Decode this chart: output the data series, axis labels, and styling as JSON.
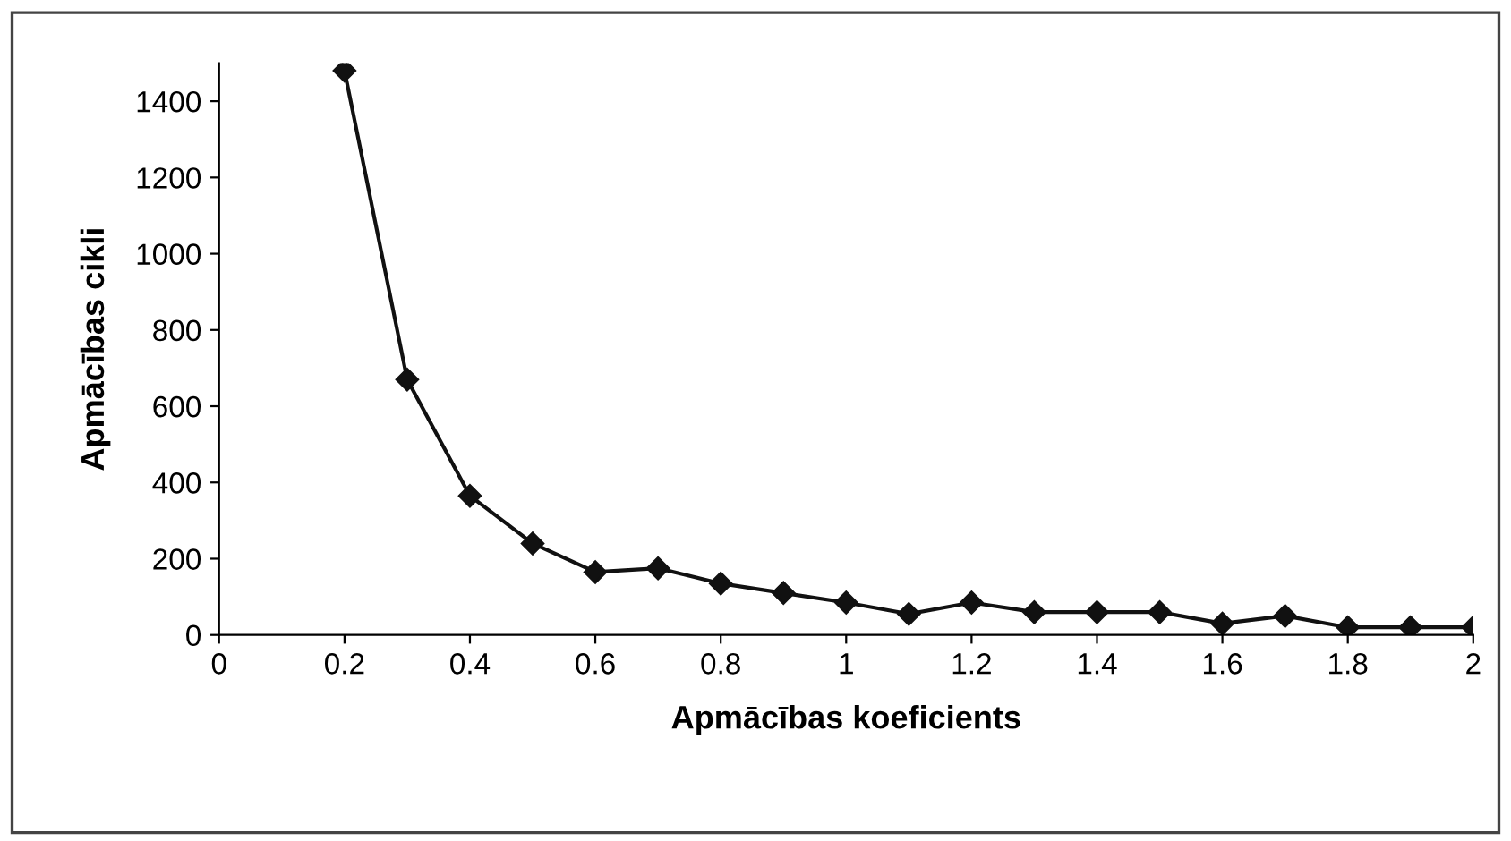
{
  "chart_data": {
    "type": "line",
    "xlabel": "Apmācības koeficients",
    "ylabel": "Apmācības cikli",
    "x": [
      0.2,
      0.3,
      0.4,
      0.5,
      0.6,
      0.7,
      0.8,
      0.9,
      1.0,
      1.1,
      1.2,
      1.3,
      1.4,
      1.5,
      1.6,
      1.7,
      1.8,
      1.9,
      2.0
    ],
    "series": [
      {
        "color": "#111111",
        "values": [
          1480,
          670,
          365,
          240,
          165,
          175,
          135,
          110,
          85,
          55,
          85,
          60,
          60,
          60,
          30,
          50,
          20,
          20,
          20
        ]
      }
    ],
    "xlim": [
      0,
      2
    ],
    "xticks": [
      0,
      0.2,
      0.4,
      0.6,
      0.8,
      1,
      1.2,
      1.4,
      1.6,
      1.8,
      2
    ],
    "ylim": [
      0,
      1500
    ],
    "yticks": [
      0,
      200,
      400,
      600,
      800,
      1000,
      1200,
      1400
    ],
    "marker": "diamond",
    "line_style": "solid"
  }
}
